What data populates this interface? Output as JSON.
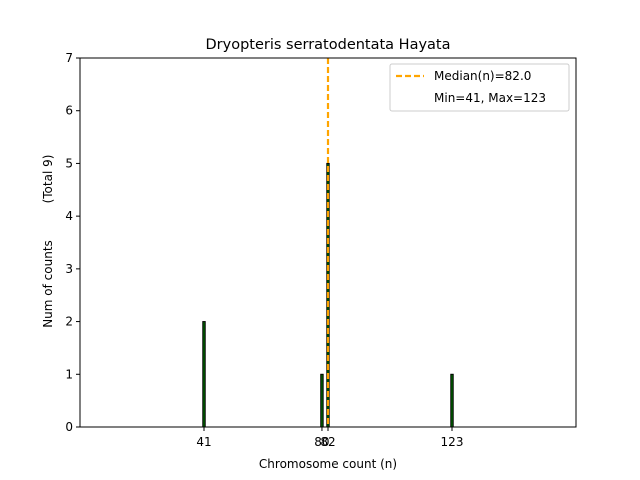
{
  "chart_data": {
    "type": "bar",
    "title": "Dryopteris serratodentata Hayata",
    "xlabel": "Chromosome count (n)",
    "ylabel": "Num of counts",
    "ylabel_total": "(Total 9)",
    "x": [
      41,
      80,
      82,
      123
    ],
    "values": [
      2,
      1,
      5,
      1
    ],
    "x_ticks": [
      41,
      80,
      82,
      123
    ],
    "x_tick_labels": [
      "41",
      "80",
      "82",
      "123"
    ],
    "y_ticks": [
      0,
      1,
      2,
      3,
      4,
      5,
      6,
      7
    ],
    "xlim": [
      0,
      164
    ],
    "ylim": [
      0,
      7
    ],
    "bar_color": "#006400",
    "median": 82.0,
    "median_color": "#ffa500",
    "legend": {
      "placement": "top-right",
      "entries": [
        "Median(n)=82.0",
        "Min=41, Max=123"
      ]
    },
    "grid": false
  }
}
